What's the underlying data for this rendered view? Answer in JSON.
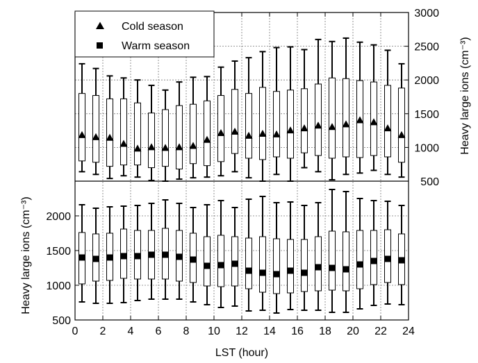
{
  "chart_data": {
    "type": "box",
    "xlabel": "LST  (hour)",
    "x_ticks": [
      "0",
      "2",
      "4",
      "6",
      "8",
      "10",
      "12",
      "14",
      "16",
      "18",
      "20",
      "22",
      "24"
    ],
    "xlim": [
      0,
      24
    ],
    "legend": {
      "placement": "top-left",
      "entries": [
        {
          "marker": "triangle",
          "label": "Cold season"
        },
        {
          "marker": "square",
          "label": "Warm season"
        }
      ]
    },
    "grid": true,
    "panels": [
      {
        "name": "cold",
        "axis_side": "right",
        "ylabel": "Heavy large ions  (cm⁻³)",
        "ylim": [
          500,
          3000
        ],
        "y_ticks": [
          "500",
          "1000",
          "1500",
          "2000",
          "2500",
          "3000"
        ],
        "marker": "triangle",
        "boxes": [
          {
            "hour": 0.5,
            "whisker_low": 640,
            "q1": 800,
            "median": 1180,
            "q3": 1800,
            "whisker_high": 2240
          },
          {
            "hour": 1.5,
            "whisker_low": 600,
            "q1": 780,
            "median": 1150,
            "q3": 1770,
            "whisker_high": 2170
          },
          {
            "hour": 2.5,
            "whisker_low": 540,
            "q1": 720,
            "median": 1140,
            "q3": 1720,
            "whisker_high": 2060
          },
          {
            "hour": 3.5,
            "whisker_low": 580,
            "q1": 740,
            "median": 1050,
            "q3": 1720,
            "whisker_high": 2030
          },
          {
            "hour": 4.5,
            "whisker_low": 560,
            "q1": 740,
            "median": 980,
            "q3": 1660,
            "whisker_high": 2000
          },
          {
            "hour": 5.5,
            "whisker_low": 510,
            "q1": 700,
            "median": 1000,
            "q3": 1510,
            "whisker_high": 1920
          },
          {
            "hour": 6.5,
            "whisker_low": 500,
            "q1": 720,
            "median": 990,
            "q3": 1560,
            "whisker_high": 1850
          },
          {
            "hour": 7.5,
            "whisker_low": 530,
            "q1": 680,
            "median": 1000,
            "q3": 1620,
            "whisker_high": 1970
          },
          {
            "hour": 8.5,
            "whisker_low": 550,
            "q1": 760,
            "median": 1020,
            "q3": 1640,
            "whisker_high": 2040
          },
          {
            "hour": 9.5,
            "whisker_low": 560,
            "q1": 730,
            "median": 1110,
            "q3": 1690,
            "whisker_high": 2050
          },
          {
            "hour": 10.5,
            "whisker_low": 580,
            "q1": 790,
            "median": 1210,
            "q3": 1770,
            "whisker_high": 2190
          },
          {
            "hour": 11.5,
            "whisker_low": 640,
            "q1": 910,
            "median": 1230,
            "q3": 1860,
            "whisker_high": 2280
          },
          {
            "hour": 12.5,
            "whisker_low": 550,
            "q1": 840,
            "median": 1170,
            "q3": 1800,
            "whisker_high": 2330
          },
          {
            "hour": 13.5,
            "whisker_low": 500,
            "q1": 820,
            "median": 1200,
            "q3": 1890,
            "whisker_high": 2420
          },
          {
            "hour": 14.5,
            "whisker_low": 600,
            "q1": 860,
            "median": 1190,
            "q3": 1830,
            "whisker_high": 2480
          },
          {
            "hour": 15.5,
            "whisker_low": 500,
            "q1": 840,
            "median": 1250,
            "q3": 1850,
            "whisker_high": 2490
          },
          {
            "hour": 16.5,
            "whisker_low": 700,
            "q1": 920,
            "median": 1280,
            "q3": 1870,
            "whisker_high": 2450
          },
          {
            "hour": 17.5,
            "whisker_low": 640,
            "q1": 880,
            "median": 1320,
            "q3": 1940,
            "whisker_high": 2600
          },
          {
            "hour": 18.5,
            "whisker_low": 520,
            "q1": 840,
            "median": 1300,
            "q3": 2030,
            "whisker_high": 2570
          },
          {
            "hour": 19.5,
            "whisker_low": 600,
            "q1": 860,
            "median": 1340,
            "q3": 2020,
            "whisker_high": 2620
          },
          {
            "hour": 20.5,
            "whisker_low": 620,
            "q1": 850,
            "median": 1400,
            "q3": 1990,
            "whisker_high": 2560
          },
          {
            "hour": 21.5,
            "whisker_low": 660,
            "q1": 880,
            "median": 1370,
            "q3": 1970,
            "whisker_high": 2520
          },
          {
            "hour": 22.5,
            "whisker_low": 600,
            "q1": 860,
            "median": 1280,
            "q3": 1920,
            "whisker_high": 2440
          },
          {
            "hour": 23.5,
            "whisker_low": 560,
            "q1": 780,
            "median": 1180,
            "q3": 1880,
            "whisker_high": 2240
          }
        ]
      },
      {
        "name": "warm",
        "axis_side": "left",
        "ylabel": "Heavy large ions  (cm⁻³)",
        "ylim": [
          500,
          2500
        ],
        "y_ticks": [
          "500",
          "1000",
          "1500",
          "2000"
        ],
        "marker": "square",
        "boxes": [
          {
            "hour": 0.5,
            "whisker_low": 760,
            "q1": 1020,
            "median": 1400,
            "q3": 1760,
            "whisker_high": 2160
          },
          {
            "hour": 1.5,
            "whisker_low": 740,
            "q1": 1060,
            "median": 1380,
            "q3": 1740,
            "whisker_high": 2110
          },
          {
            "hour": 2.5,
            "whisker_low": 740,
            "q1": 1070,
            "median": 1400,
            "q3": 1750,
            "whisker_high": 2130
          },
          {
            "hour": 3.5,
            "whisker_low": 750,
            "q1": 1100,
            "median": 1420,
            "q3": 1810,
            "whisker_high": 2140
          },
          {
            "hour": 4.5,
            "whisker_low": 780,
            "q1": 1090,
            "median": 1420,
            "q3": 1790,
            "whisker_high": 2150
          },
          {
            "hour": 5.5,
            "whisker_low": 800,
            "q1": 1090,
            "median": 1440,
            "q3": 1790,
            "whisker_high": 2180
          },
          {
            "hour": 6.5,
            "whisker_low": 800,
            "q1": 1090,
            "median": 1440,
            "q3": 1820,
            "whisker_high": 2230
          },
          {
            "hour": 7.5,
            "whisker_low": 800,
            "q1": 1060,
            "median": 1410,
            "q3": 1790,
            "whisker_high": 2180
          },
          {
            "hour": 8.5,
            "whisker_low": 760,
            "q1": 1040,
            "median": 1370,
            "q3": 1750,
            "whisker_high": 2120
          },
          {
            "hour": 9.5,
            "whisker_low": 720,
            "q1": 990,
            "median": 1280,
            "q3": 1700,
            "whisker_high": 2160
          },
          {
            "hour": 10.5,
            "whisker_low": 680,
            "q1": 980,
            "median": 1290,
            "q3": 1720,
            "whisker_high": 2220
          },
          {
            "hour": 11.5,
            "whisker_low": 700,
            "q1": 990,
            "median": 1310,
            "q3": 1700,
            "whisker_high": 2120
          },
          {
            "hour": 12.5,
            "whisker_low": 630,
            "q1": 950,
            "median": 1210,
            "q3": 1680,
            "whisker_high": 2240
          },
          {
            "hour": 13.5,
            "whisker_low": 640,
            "q1": 900,
            "median": 1180,
            "q3": 1700,
            "whisker_high": 2280
          },
          {
            "hour": 14.5,
            "whisker_low": 600,
            "q1": 880,
            "median": 1160,
            "q3": 1670,
            "whisker_high": 2190
          },
          {
            "hour": 15.5,
            "whisker_low": 650,
            "q1": 890,
            "median": 1210,
            "q3": 1660,
            "whisker_high": 2200
          },
          {
            "hour": 16.5,
            "whisker_low": 640,
            "q1": 910,
            "median": 1180,
            "q3": 1660,
            "whisker_high": 2150
          },
          {
            "hour": 17.5,
            "whisker_low": 640,
            "q1": 920,
            "median": 1260,
            "q3": 1700,
            "whisker_high": 2190
          },
          {
            "hour": 18.5,
            "whisker_low": 610,
            "q1": 930,
            "median": 1250,
            "q3": 1780,
            "whisker_high": 2380
          },
          {
            "hour": 19.5,
            "whisker_low": 610,
            "q1": 920,
            "median": 1230,
            "q3": 1770,
            "whisker_high": 2350
          },
          {
            "hour": 20.5,
            "whisker_low": 660,
            "q1": 950,
            "median": 1300,
            "q3": 1790,
            "whisker_high": 2250
          },
          {
            "hour": 21.5,
            "whisker_low": 710,
            "q1": 1010,
            "median": 1350,
            "q3": 1790,
            "whisker_high": 2220
          },
          {
            "hour": 22.5,
            "whisker_low": 730,
            "q1": 1040,
            "median": 1380,
            "q3": 1800,
            "whisker_high": 2210
          },
          {
            "hour": 23.5,
            "whisker_low": 720,
            "q1": 1010,
            "median": 1360,
            "q3": 1740,
            "whisker_high": 2150
          }
        ]
      }
    ]
  }
}
